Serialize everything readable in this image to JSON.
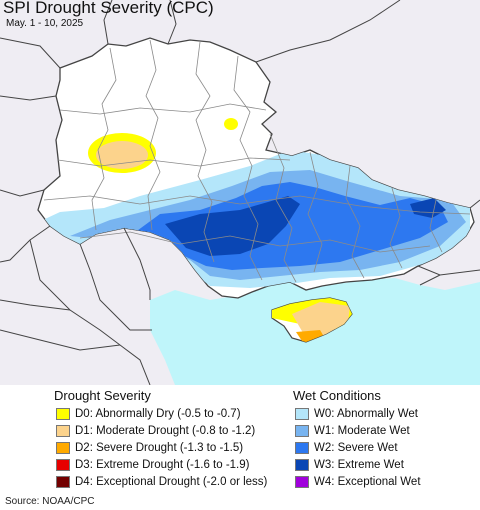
{
  "title": "SPI Drought Severity (CPC)",
  "subtitle": "May. 1 - 10, 2025",
  "source": "Source: NOAA/CPC",
  "colors": {
    "land": "#ffffff",
    "outside": "#efedf3",
    "sea": "#bff5fa",
    "border": "#555555"
  },
  "legend": {
    "drought": {
      "heading": "Drought Severity",
      "items": [
        {
          "label": "D0: Abnormally Dry (-0.5 to -0.7)",
          "color": "#ffff00"
        },
        {
          "label": "D1: Moderate Drought (-0.8 to -1.2)",
          "color": "#fcd38c"
        },
        {
          "label": "D2: Severe Drought (-1.3 to -1.5)",
          "color": "#ffaa00"
        },
        {
          "label": "D3: Extreme Drought (-1.6 to -1.9)",
          "color": "#e60000"
        },
        {
          "label": "D4: Exceptional Drought (-2.0 or less)",
          "color": "#730000"
        }
      ]
    },
    "wet": {
      "heading": "Wet Conditions",
      "items": [
        {
          "label": "W0: Abnormally Wet",
          "color": "#b4e6fa"
        },
        {
          "label": "W1: Moderate Wet",
          "color": "#78b4f0"
        },
        {
          "label": "W2: Severe Wet",
          "color": "#2d78f0"
        },
        {
          "label": "W3: Extreme Wet",
          "color": "#0a46b4"
        },
        {
          "label": "W4: Exceptional Wet",
          "color": "#a000dc"
        }
      ]
    }
  }
}
